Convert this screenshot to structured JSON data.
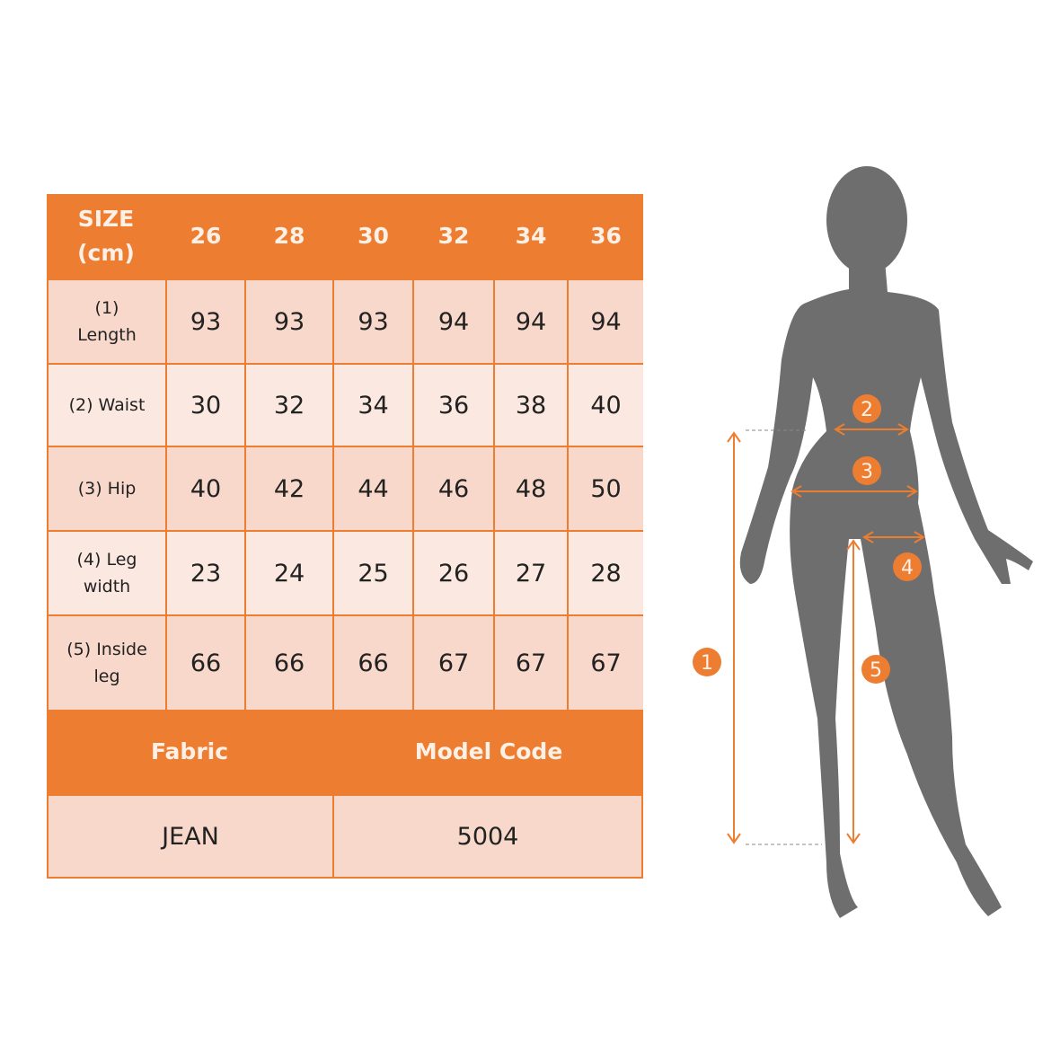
{
  "table": {
    "header_label": [
      "SIZE",
      "(cm)"
    ],
    "sizes": [
      "26",
      "28",
      "30",
      "32",
      "34",
      "36"
    ],
    "rows": [
      {
        "label": [
          "(1)",
          "Length"
        ],
        "values": [
          "93",
          "93",
          "93",
          "94",
          "94",
          "94"
        ]
      },
      {
        "label": [
          "(2) Waist"
        ],
        "values": [
          "30",
          "32",
          "34",
          "36",
          "38",
          "40"
        ]
      },
      {
        "label": [
          "(3) Hip"
        ],
        "values": [
          "40",
          "42",
          "44",
          "46",
          "48",
          "50"
        ]
      },
      {
        "label": [
          "(4) Leg",
          "width"
        ],
        "values": [
          "23",
          "24",
          "25",
          "26",
          "27",
          "28"
        ]
      },
      {
        "label": [
          "(5) Inside",
          "leg"
        ],
        "values": [
          "66",
          "66",
          "66",
          "67",
          "67",
          "67"
        ]
      }
    ],
    "footer_headers": [
      "Fabric",
      "Model Code"
    ],
    "footer_values": [
      "JEAN",
      "5004"
    ]
  },
  "figure": {
    "markers": [
      "1",
      "2",
      "3",
      "4",
      "5"
    ]
  },
  "colors": {
    "accent": "#ED7D31",
    "cell_dark": "#F8D8CB",
    "cell_light": "#FBE8E0",
    "silhouette": "#6E6E6E"
  }
}
